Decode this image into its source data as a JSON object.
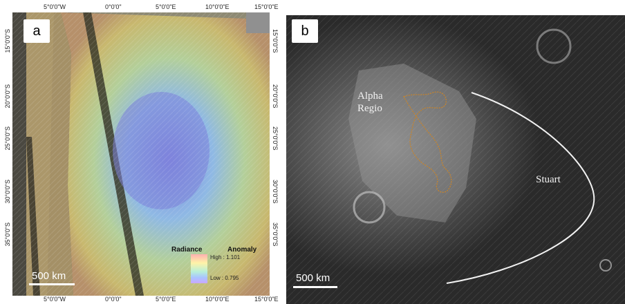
{
  "panel_a": {
    "label": "a",
    "top_ticks": [
      "5°0'0\"W",
      "0°0'0\"",
      "5°0'0\"E",
      "10°0'0\"E",
      "15°0'0\"E"
    ],
    "bottom_ticks": [
      "5°0'0\"W",
      "0°0'0\"",
      "5°0'0\"E",
      "10°0'0\"E",
      "15°0'0\"E"
    ],
    "left_ticks": [
      "15°0'0\"S",
      "20°0'0\"S",
      "25°0'0\"S",
      "30°0'0\"S",
      "35°0'0\"S"
    ],
    "right_ticks": [
      "15°0'0\"S",
      "20°0'0\"S",
      "25°0'0\"S",
      "30°0'0\"S",
      "35°0'0\"S"
    ],
    "legend": {
      "title_left": "Radiance",
      "title_right": "Anomaly",
      "high": "High : 1.101",
      "low": "Low : 0.795",
      "colors": [
        "#ffb0b0",
        "#fff3a8",
        "#b8f0d8",
        "#a9c4ff",
        "#c9a8ff"
      ]
    },
    "scale_bar": "500 km"
  },
  "panel_b": {
    "label": "b",
    "places": {
      "alpha": "Alpha\nRegio",
      "stuart": "Stuart"
    },
    "scale_bar": "500 km",
    "outline_color": "#c8842a"
  }
}
